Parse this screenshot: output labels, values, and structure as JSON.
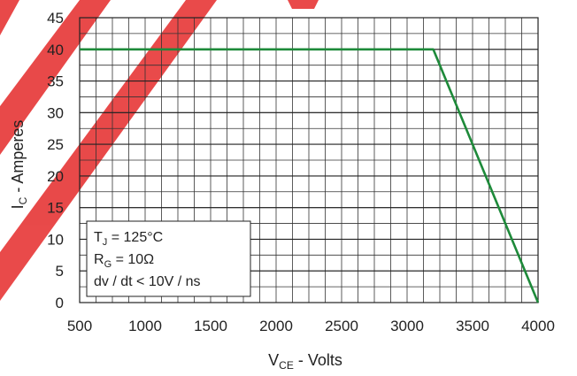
{
  "chart_data": {
    "type": "line",
    "title": "",
    "xlabel": {
      "main": "V",
      "sub": "CE",
      "rest": " - Volts"
    },
    "ylabel": {
      "main": "I",
      "sub": "C",
      "rest": " - Amperes"
    },
    "xlim": [
      500,
      4000
    ],
    "ylim": [
      0,
      45
    ],
    "x_ticks": [
      500,
      1000,
      1500,
      2000,
      2500,
      3000,
      3500,
      4000
    ],
    "y_ticks": [
      0,
      5,
      10,
      15,
      20,
      25,
      30,
      35,
      40,
      45
    ],
    "x_minor_step": 125,
    "y_minor_step": 2.5,
    "grid": true,
    "legend": "none",
    "series": [
      {
        "x": [
          500,
          3200,
          4000
        ],
        "y": [
          40,
          40,
          0
        ]
      }
    ],
    "series_color": "#1e8a3a",
    "annotation": {
      "lines": [
        {
          "main": "T",
          "sub": "J",
          "rest": " = 125°C"
        },
        {
          "main": "R",
          "sub": "G",
          "rest": " = 10Ω"
        },
        {
          "main": "dv / dt < 10V / ns",
          "sub": "",
          "rest": ""
        }
      ],
      "position": "bottom-left"
    }
  }
}
